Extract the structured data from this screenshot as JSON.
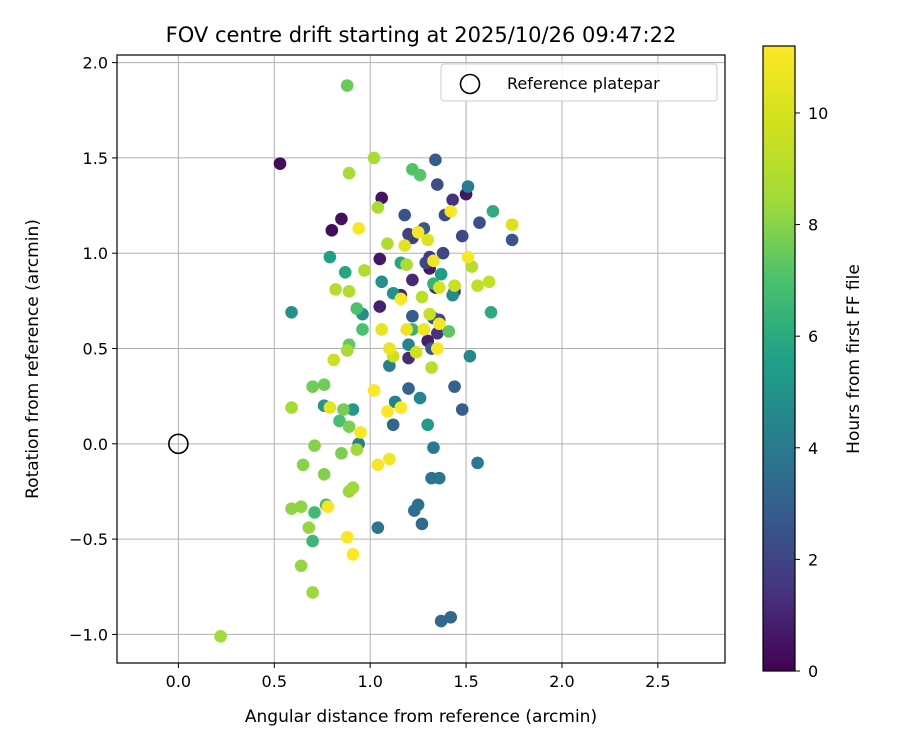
{
  "chart_data": {
    "type": "scatter",
    "title": "FOV centre drift starting at 2025/10/26 09:47:22",
    "xlabel": "Angular distance from reference (arcmin)",
    "ylabel": "Rotation from reference (arcmin)",
    "xlim": [
      -0.32,
      2.85
    ],
    "ylim": [
      -1.15,
      2.04
    ],
    "xticks": [
      0.0,
      0.5,
      1.0,
      1.5,
      2.0,
      2.5
    ],
    "xtick_labels": [
      "0.0",
      "0.5",
      "1.0",
      "1.5",
      "2.0",
      "2.5"
    ],
    "yticks": [
      -1.0,
      -0.5,
      0.0,
      0.5,
      1.0,
      1.5,
      2.0
    ],
    "ytick_labels": [
      "−1.0",
      "−0.5",
      "0.0",
      "0.5",
      "1.0",
      "1.5",
      "2.0"
    ],
    "grid": true,
    "colorbar": {
      "label": "Hours from first FF file",
      "colormap": "viridis",
      "range": [
        0,
        11.2
      ],
      "ticks": [
        0,
        2,
        4,
        6,
        8,
        10
      ],
      "tick_labels": [
        "0",
        "2",
        "4",
        "6",
        "8",
        "10"
      ]
    },
    "reference": {
      "x": 0.0,
      "y": 0.0,
      "label": "Reference platepar"
    },
    "legend": {
      "entries": [
        "Reference platepar"
      ],
      "location": "upper right"
    },
    "points": [
      {
        "x": 0.53,
        "y": 1.47,
        "h": 0.3
      },
      {
        "x": 0.8,
        "y": 1.12,
        "h": 0.3
      },
      {
        "x": 0.85,
        "y": 1.18,
        "h": 0.4
      },
      {
        "x": 1.06,
        "y": 1.29,
        "h": 0.5
      },
      {
        "x": 1.05,
        "y": 0.97,
        "h": 0.6
      },
      {
        "x": 1.5,
        "y": 1.31,
        "h": 0.6
      },
      {
        "x": 1.31,
        "y": 0.92,
        "h": 0.7
      },
      {
        "x": 1.3,
        "y": 0.54,
        "h": 0.8
      },
      {
        "x": 1.05,
        "y": 0.72,
        "h": 0.9
      },
      {
        "x": 1.16,
        "y": 0.78,
        "h": 1.0
      },
      {
        "x": 1.22,
        "y": 0.86,
        "h": 1.1
      },
      {
        "x": 1.2,
        "y": 0.45,
        "h": 1.2
      },
      {
        "x": 1.34,
        "y": 0.82,
        "h": 1.3
      },
      {
        "x": 1.43,
        "y": 1.28,
        "h": 1.4
      },
      {
        "x": 1.35,
        "y": 0.58,
        "h": 1.5
      },
      {
        "x": 1.31,
        "y": 0.98,
        "h": 1.6
      },
      {
        "x": 1.44,
        "y": 0.8,
        "h": 1.7
      },
      {
        "x": 1.22,
        "y": 1.08,
        "h": 1.8
      },
      {
        "x": 1.2,
        "y": 1.1,
        "h": 1.9
      },
      {
        "x": 1.36,
        "y": 0.65,
        "h": 2.0
      },
      {
        "x": 1.29,
        "y": 0.95,
        "h": 2.1
      },
      {
        "x": 1.38,
        "y": 1.0,
        "h": 2.1
      },
      {
        "x": 1.48,
        "y": 1.09,
        "h": 2.2
      },
      {
        "x": 1.35,
        "y": 1.36,
        "h": 2.3
      },
      {
        "x": 1.39,
        "y": 1.2,
        "h": 2.3
      },
      {
        "x": 1.57,
        "y": 1.16,
        "h": 2.4
      },
      {
        "x": 1.18,
        "y": 1.2,
        "h": 2.5
      },
      {
        "x": 1.33,
        "y": 0.66,
        "h": 2.5
      },
      {
        "x": 1.32,
        "y": 0.5,
        "h": 2.6
      },
      {
        "x": 1.74,
        "y": 1.07,
        "h": 2.6
      },
      {
        "x": 1.28,
        "y": 1.13,
        "h": 2.7
      },
      {
        "x": 1.22,
        "y": 0.67,
        "h": 2.8
      },
      {
        "x": 1.34,
        "y": 1.49,
        "h": 2.8
      },
      {
        "x": 1.48,
        "y": 0.18,
        "h": 2.9
      },
      {
        "x": 1.44,
        "y": 0.3,
        "h": 3.0
      },
      {
        "x": 1.2,
        "y": 0.29,
        "h": 3.1
      },
      {
        "x": 1.12,
        "y": 0.1,
        "h": 3.2
      },
      {
        "x": 1.37,
        "y": -0.93,
        "h": 3.3
      },
      {
        "x": 1.42,
        "y": -0.91,
        "h": 3.3
      },
      {
        "x": 1.27,
        "y": -0.42,
        "h": 3.4
      },
      {
        "x": 1.23,
        "y": -0.35,
        "h": 3.5
      },
      {
        "x": 1.25,
        "y": -0.32,
        "h": 3.6
      },
      {
        "x": 1.32,
        "y": -0.18,
        "h": 3.7
      },
      {
        "x": 1.36,
        "y": -0.18,
        "h": 3.7
      },
      {
        "x": 1.04,
        "y": -0.44,
        "h": 3.8
      },
      {
        "x": 1.33,
        "y": -0.02,
        "h": 3.9
      },
      {
        "x": 1.56,
        "y": -0.1,
        "h": 4.0
      },
      {
        "x": 1.51,
        "y": 1.35,
        "h": 4.1
      },
      {
        "x": 0.94,
        "y": 0.0,
        "h": 4.1
      },
      {
        "x": 1.1,
        "y": 0.41,
        "h": 4.2
      },
      {
        "x": 1.13,
        "y": 0.22,
        "h": 4.3
      },
      {
        "x": 1.2,
        "y": 0.52,
        "h": 4.4
      },
      {
        "x": 1.26,
        "y": 0.24,
        "h": 4.5
      },
      {
        "x": 1.52,
        "y": 0.46,
        "h": 4.6
      },
      {
        "x": 1.43,
        "y": 0.78,
        "h": 4.7
      },
      {
        "x": 0.96,
        "y": 0.68,
        "h": 4.8
      },
      {
        "x": 1.06,
        "y": 0.85,
        "h": 4.9
      },
      {
        "x": 1.12,
        "y": 0.79,
        "h": 5.0
      },
      {
        "x": 0.59,
        "y": 0.69,
        "h": 5.0
      },
      {
        "x": 0.76,
        "y": 0.2,
        "h": 5.1
      },
      {
        "x": 0.91,
        "y": 0.18,
        "h": 5.3
      },
      {
        "x": 1.3,
        "y": 0.1,
        "h": 5.4
      },
      {
        "x": 1.37,
        "y": 0.89,
        "h": 5.5
      },
      {
        "x": 0.79,
        "y": 0.98,
        "h": 5.6
      },
      {
        "x": 0.87,
        "y": 0.9,
        "h": 5.8
      },
      {
        "x": 1.16,
        "y": 0.95,
        "h": 5.9
      },
      {
        "x": 1.63,
        "y": 0.69,
        "h": 6.0
      },
      {
        "x": 1.64,
        "y": 1.22,
        "h": 6.1
      },
      {
        "x": 1.33,
        "y": 0.84,
        "h": 6.3
      },
      {
        "x": 1.22,
        "y": 0.6,
        "h": 6.4
      },
      {
        "x": 0.7,
        "y": -0.51,
        "h": 6.5
      },
      {
        "x": 0.71,
        "y": -0.36,
        "h": 6.7
      },
      {
        "x": 0.77,
        "y": -0.32,
        "h": 6.8
      },
      {
        "x": 0.84,
        "y": 0.12,
        "h": 6.9
      },
      {
        "x": 0.93,
        "y": 0.71,
        "h": 7.0
      },
      {
        "x": 0.96,
        "y": 0.6,
        "h": 7.0
      },
      {
        "x": 1.22,
        "y": 1.44,
        "h": 7.1
      },
      {
        "x": 1.26,
        "y": 1.41,
        "h": 7.2
      },
      {
        "x": 1.41,
        "y": 0.59,
        "h": 7.3
      },
      {
        "x": 0.89,
        "y": 0.52,
        "h": 7.4
      },
      {
        "x": 0.88,
        "y": 1.88,
        "h": 7.5
      },
      {
        "x": 0.7,
        "y": 0.3,
        "h": 7.6
      },
      {
        "x": 0.76,
        "y": 0.31,
        "h": 7.6
      },
      {
        "x": 0.86,
        "y": 0.18,
        "h": 7.7
      },
      {
        "x": 0.89,
        "y": 0.09,
        "h": 7.8
      },
      {
        "x": 0.85,
        "y": -0.05,
        "h": 7.8
      },
      {
        "x": 0.76,
        "y": -0.16,
        "h": 7.9
      },
      {
        "x": 0.65,
        "y": -0.11,
        "h": 8.0
      },
      {
        "x": 0.71,
        "y": -0.01,
        "h": 8.0
      },
      {
        "x": 0.59,
        "y": -0.34,
        "h": 8.1
      },
      {
        "x": 0.64,
        "y": -0.33,
        "h": 8.1
      },
      {
        "x": 0.68,
        "y": -0.44,
        "h": 8.2
      },
      {
        "x": 0.64,
        "y": -0.64,
        "h": 8.2
      },
      {
        "x": 0.7,
        "y": -0.78,
        "h": 8.3
      },
      {
        "x": 0.89,
        "y": -0.25,
        "h": 8.3
      },
      {
        "x": 0.91,
        "y": -0.23,
        "h": 8.4
      },
      {
        "x": 0.93,
        "y": -0.03,
        "h": 8.4
      },
      {
        "x": 0.59,
        "y": 0.19,
        "h": 8.5
      },
      {
        "x": 0.22,
        "y": -1.01,
        "h": 8.5
      },
      {
        "x": 0.88,
        "y": 0.49,
        "h": 8.6
      },
      {
        "x": 0.89,
        "y": 1.42,
        "h": 8.6
      },
      {
        "x": 1.02,
        "y": 1.5,
        "h": 8.7
      },
      {
        "x": 1.04,
        "y": 1.24,
        "h": 8.7
      },
      {
        "x": 1.19,
        "y": 0.94,
        "h": 8.8
      },
      {
        "x": 1.09,
        "y": 1.05,
        "h": 8.8
      },
      {
        "x": 0.89,
        "y": 0.8,
        "h": 8.9
      },
      {
        "x": 0.97,
        "y": 0.91,
        "h": 8.9
      },
      {
        "x": 0.82,
        "y": 0.81,
        "h": 9.0
      },
      {
        "x": 1.53,
        "y": 0.93,
        "h": 9.0
      },
      {
        "x": 1.32,
        "y": 0.4,
        "h": 9.1
      },
      {
        "x": 1.27,
        "y": 0.77,
        "h": 9.2
      },
      {
        "x": 1.56,
        "y": 0.83,
        "h": 9.3
      },
      {
        "x": 1.62,
        "y": 0.85,
        "h": 9.4
      },
      {
        "x": 1.44,
        "y": 0.83,
        "h": 9.5
      },
      {
        "x": 1.31,
        "y": 0.68,
        "h": 9.6
      },
      {
        "x": 0.81,
        "y": 0.44,
        "h": 9.7
      },
      {
        "x": 1.12,
        "y": 0.46,
        "h": 9.8
      },
      {
        "x": 1.24,
        "y": 0.48,
        "h": 9.9
      },
      {
        "x": 1.36,
        "y": 0.82,
        "h": 10.0
      },
      {
        "x": 1.74,
        "y": 1.15,
        "h": 10.1
      },
      {
        "x": 1.3,
        "y": 1.07,
        "h": 10.2
      },
      {
        "x": 1.18,
        "y": 1.04,
        "h": 10.3
      },
      {
        "x": 0.79,
        "y": 0.19,
        "h": 10.4
      },
      {
        "x": 1.06,
        "y": 0.6,
        "h": 10.5
      },
      {
        "x": 1.1,
        "y": 0.5,
        "h": 10.6
      },
      {
        "x": 1.19,
        "y": 0.6,
        "h": 10.7
      },
      {
        "x": 1.28,
        "y": 0.6,
        "h": 10.8
      },
      {
        "x": 1.36,
        "y": 0.63,
        "h": 10.9
      },
      {
        "x": 1.25,
        "y": 1.11,
        "h": 11.0
      },
      {
        "x": 1.42,
        "y": 1.22,
        "h": 11.0
      },
      {
        "x": 1.51,
        "y": 0.98,
        "h": 11.1
      },
      {
        "x": 1.16,
        "y": 0.76,
        "h": 11.1
      },
      {
        "x": 0.95,
        "y": 0.06,
        "h": 11.1
      },
      {
        "x": 1.02,
        "y": 0.28,
        "h": 11.2
      },
      {
        "x": 1.09,
        "y": 0.17,
        "h": 11.2
      },
      {
        "x": 1.16,
        "y": 0.19,
        "h": 11.2
      },
      {
        "x": 1.04,
        "y": -0.11,
        "h": 11.0
      },
      {
        "x": 1.1,
        "y": -0.08,
        "h": 10.9
      },
      {
        "x": 0.78,
        "y": -0.33,
        "h": 11.0
      },
      {
        "x": 0.88,
        "y": -0.49,
        "h": 11.1
      },
      {
        "x": 0.91,
        "y": -0.58,
        "h": 11.2
      },
      {
        "x": 0.94,
        "y": 1.13,
        "h": 11.0
      },
      {
        "x": 1.35,
        "y": 0.5,
        "h": 11.1
      },
      {
        "x": 1.33,
        "y": 0.96,
        "h": 10.8
      }
    ]
  }
}
